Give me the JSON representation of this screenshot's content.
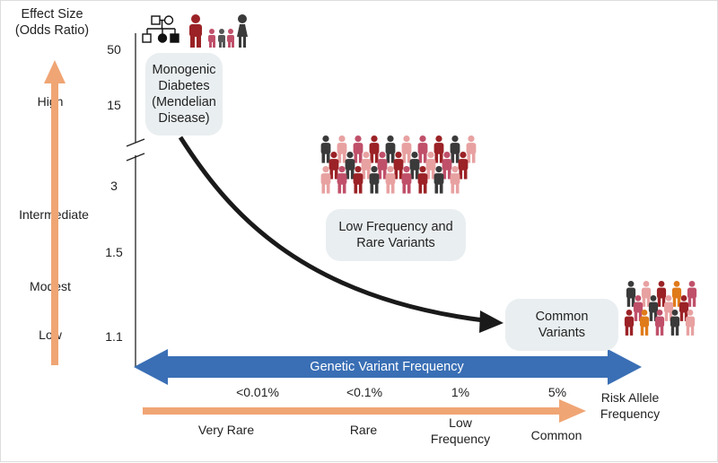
{
  "y_axis": {
    "title": "Effect Size\n(Odds Ratio)",
    "categories": [
      "High",
      "Intermediate",
      "Modest",
      "Low"
    ],
    "ticks": [
      "50",
      "15",
      "3",
      "1.5",
      "1.1"
    ]
  },
  "boxes": {
    "monogenic": "Monogenic\nDiabetes\n(Mendelian\nDisease)",
    "low_freq": "Low Frequency and\nRare Variants",
    "common": "Common\nVariants"
  },
  "x_axis": {
    "banner": "Genetic Variant Frequency",
    "title": "Risk Allele\nFrequency",
    "frequencies": [
      "<0.01%",
      "<0.1%",
      "1%",
      "5%"
    ],
    "categories": [
      "Very Rare",
      "Rare",
      "Low\nFrequency",
      "Common"
    ]
  },
  "colors": {
    "orange_arrow": "#f0a574",
    "blue_arrow": "#3a6fb5",
    "box_fill": "#e9eef0",
    "dark_red": "#9b2226",
    "pink": "#c0506a",
    "light_pink": "#e8a1a1",
    "dark_grey": "#3a3a3a",
    "orange_person": "#e07b1a"
  },
  "icons": [
    "pedigree-icon",
    "family-icon",
    "crowd-icon"
  ]
}
